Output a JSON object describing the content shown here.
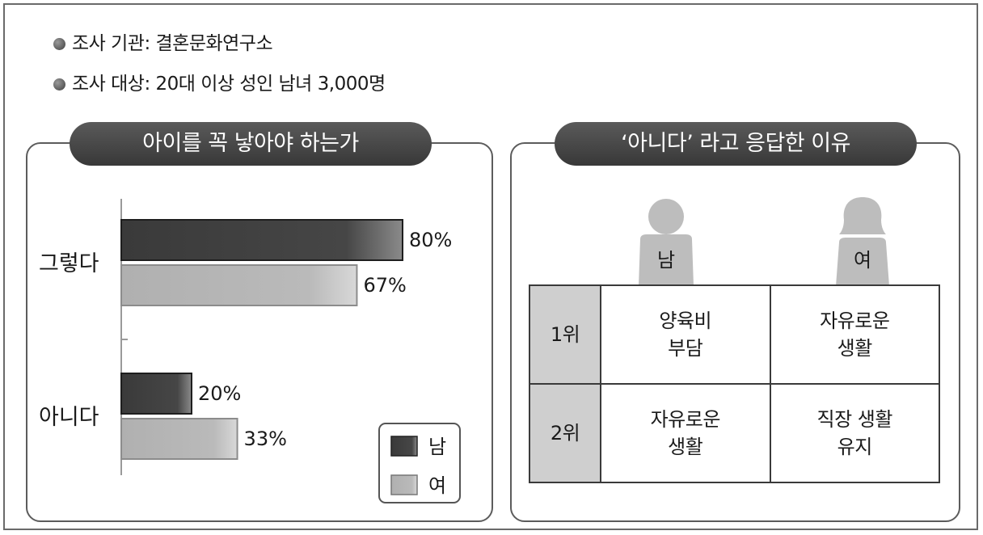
{
  "info": {
    "agency": "조사 기관: 결혼문화연구소",
    "target": "조사 대상: 20대 이상 성인 남녀 3,000명"
  },
  "left_panel": {
    "title": "아이를 꼭 낳아야 하는가"
  },
  "right_panel": {
    "title": "‘아니다’ 라고 응답한 이유",
    "male_label": "남",
    "female_label": "여",
    "rows": [
      {
        "rank": "1위",
        "male": "양육비\n부담",
        "female": "자유로운\n생활"
      },
      {
        "rank": "2위",
        "male": "자유로운\n생활",
        "female": "직장 생활\n유지"
      }
    ]
  },
  "colors": {
    "male": "#3c3c3c",
    "female": "#b4b4b4",
    "pill": "#454545"
  },
  "chart_data": {
    "type": "bar",
    "orientation": "horizontal",
    "title": "아이를 꼭 낳아야 하는가",
    "categories": [
      "그렇다",
      "아니다"
    ],
    "series": [
      {
        "name": "남",
        "values": [
          80,
          20
        ],
        "labels": [
          "80%",
          "20%"
        ]
      },
      {
        "name": "여",
        "values": [
          67,
          33
        ],
        "labels": [
          "67%",
          "33%"
        ]
      }
    ],
    "unit": "%",
    "xlim": [
      0,
      100
    ],
    "legend": "bottom-right",
    "grid": false
  }
}
